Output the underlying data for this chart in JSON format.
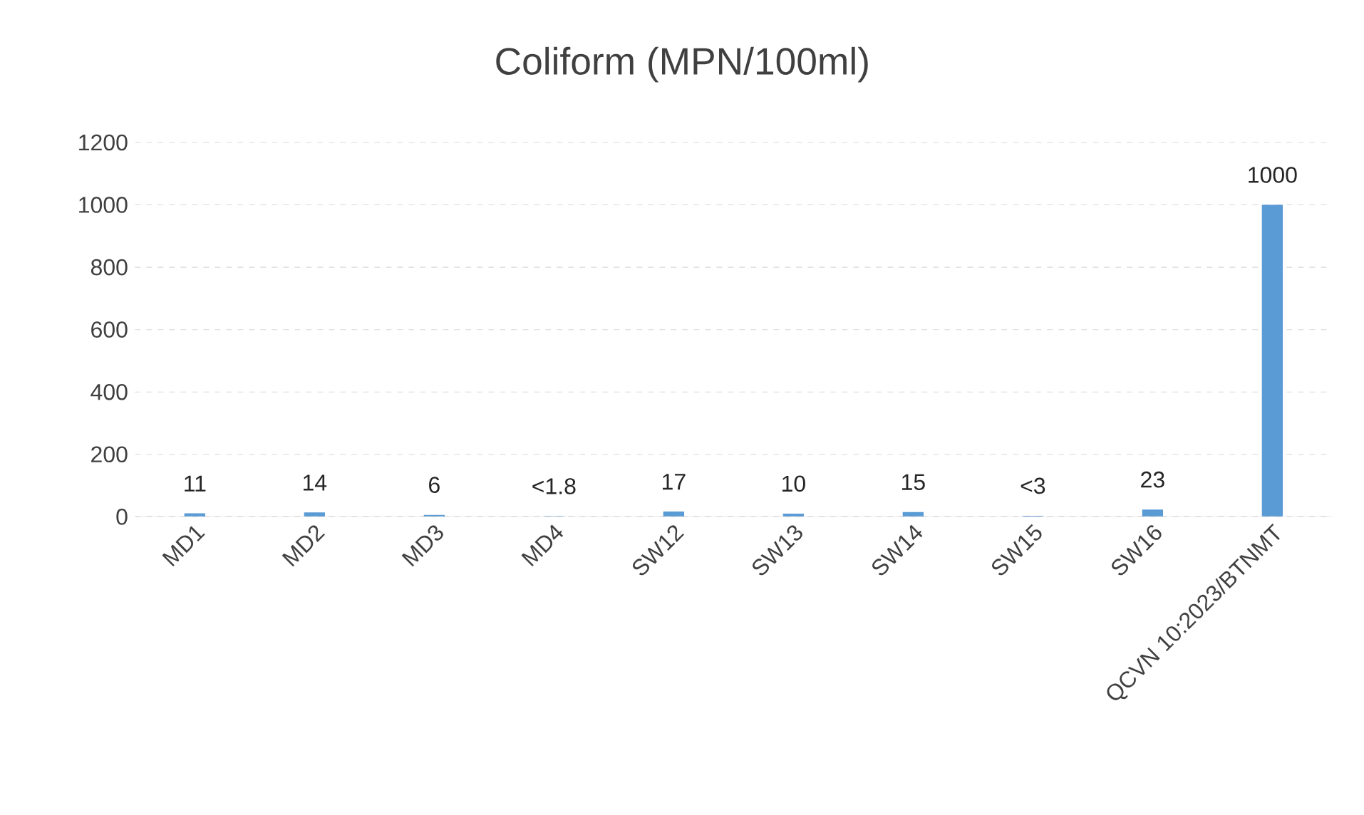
{
  "chart_data": {
    "type": "bar",
    "title": "Coliform (MPN/100ml)",
    "categories": [
      "MD1",
      "MD2",
      "MD3",
      "MD4",
      "SW12",
      "SW13",
      "SW14",
      "SW15",
      "SW16",
      "QCVN 10:2023/BTNMT"
    ],
    "values": [
      11,
      14,
      6,
      1.8,
      17,
      10,
      15,
      3,
      23,
      1000
    ],
    "value_labels": [
      "11",
      "14",
      "6",
      "<1.8",
      "17",
      "10",
      "15",
      "<3",
      "23",
      "1000"
    ],
    "color": "#5b9bd5",
    "ylim": [
      0,
      1200
    ],
    "yticks": [
      0,
      200,
      400,
      600,
      800,
      1000,
      1200
    ],
    "grid": "y"
  }
}
